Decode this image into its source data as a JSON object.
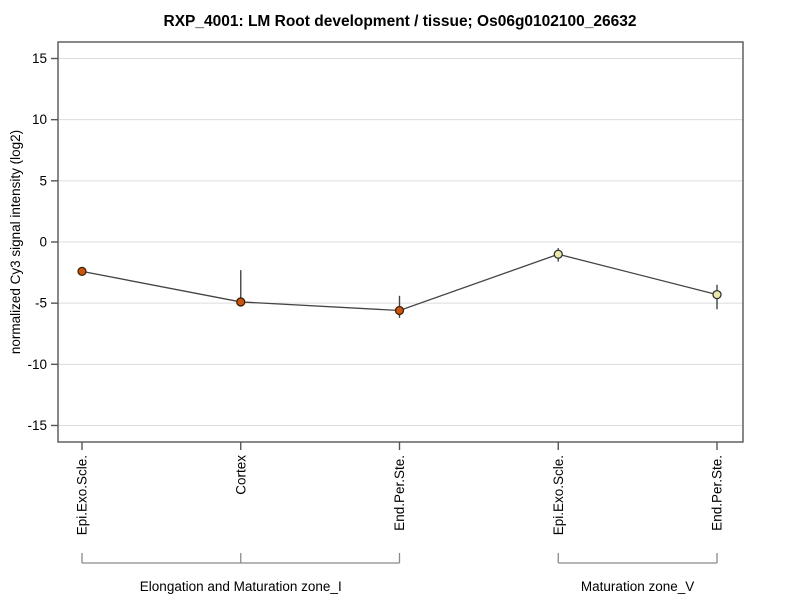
{
  "title": "RXP_4001: LM Root development / tissue; Os06g0102100_26632",
  "chart_data": {
    "type": "line",
    "title": "RXP_4001: LM Root development / tissue; Os06g0102100_26632",
    "ylabel": "normalized Cy3 signal intensity (log2)",
    "xlabel": "",
    "ylim": [
      -16.35,
      16.35
    ],
    "yticks": [
      15,
      10,
      5,
      0,
      -5,
      -10,
      -15
    ],
    "grid": true,
    "legend_position": "none",
    "categories": [
      "Epi.Exo.Scle.",
      "Cortex",
      "End.Per.Ste.",
      "Epi.Exo.Scle.",
      "End.Per.Ste."
    ],
    "groups": [
      {
        "label": "Elongation and Maturation zone_I",
        "start": 0,
        "end": 2
      },
      {
        "label": "Maturation zone_V",
        "start": 3,
        "end": 4
      }
    ],
    "series": [
      {
        "name": "normalized Cy3 signal intensity (log2)",
        "values": [
          -2.4,
          -4.9,
          -5.6,
          -1.0,
          -4.3
        ],
        "error_low": [
          -2.4,
          -5.0,
          -6.2,
          -1.6,
          -5.5
        ],
        "error_high": [
          -2.4,
          -2.3,
          -4.4,
          -0.5,
          -3.5
        ],
        "marker_fill": [
          "#cc5510",
          "#cc5510",
          "#cc5510",
          "#ede9a9",
          "#ede9a9"
        ],
        "marker_stroke": [
          "#3c2405",
          "#3c2405",
          "#3c2405",
          "#333333",
          "#333333"
        ]
      }
    ],
    "colors": {
      "line": "#444444",
      "grid": "#dcdcdc",
      "frame": "#555555",
      "tick": "#555555",
      "bracket": "#8a8a8a",
      "error_bar": "#444444",
      "text": "#000000"
    }
  }
}
